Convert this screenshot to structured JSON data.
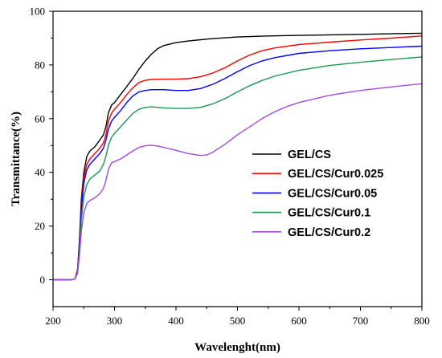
{
  "chart_data": {
    "type": "line",
    "title": "",
    "xlabel": "Wavelenght(nm)",
    "ylabel": "Transmittance(%)",
    "xlim": [
      200,
      800
    ],
    "ylim": [
      -10,
      100
    ],
    "xticks": [
      200,
      300,
      400,
      500,
      600,
      700,
      800
    ],
    "yticks": [
      0,
      20,
      40,
      60,
      80,
      100
    ],
    "grid": false,
    "legend": "center-right",
    "series": [
      {
        "name": "GEL/CS",
        "color": "#000000",
        "points": [
          [
            200,
            0
          ],
          [
            230,
            0
          ],
          [
            236,
            0.3
          ],
          [
            240,
            4
          ],
          [
            243,
            15
          ],
          [
            246,
            30
          ],
          [
            250,
            40
          ],
          [
            255,
            46
          ],
          [
            260,
            48
          ],
          [
            268,
            49.5
          ],
          [
            276,
            52
          ],
          [
            282,
            54
          ],
          [
            286,
            57
          ],
          [
            290,
            62
          ],
          [
            295,
            65
          ],
          [
            300,
            66
          ],
          [
            310,
            69
          ],
          [
            320,
            72
          ],
          [
            330,
            75
          ],
          [
            340,
            78.5
          ],
          [
            350,
            81.5
          ],
          [
            360,
            84
          ],
          [
            370,
            86
          ],
          [
            380,
            87.2
          ],
          [
            400,
            88.3
          ],
          [
            420,
            88.9
          ],
          [
            440,
            89.4
          ],
          [
            460,
            89.8
          ],
          [
            480,
            90.1
          ],
          [
            500,
            90.4
          ],
          [
            550,
            90.8
          ],
          [
            600,
            91
          ],
          [
            650,
            91.2
          ],
          [
            700,
            91.4
          ],
          [
            750,
            91.6
          ],
          [
            800,
            91.8
          ]
        ]
      },
      {
        "name": "GEL/CS/Cur0.025",
        "color": "#ff0000",
        "points": [
          [
            200,
            0
          ],
          [
            230,
            0
          ],
          [
            236,
            0.3
          ],
          [
            240,
            4
          ],
          [
            243,
            14
          ],
          [
            246,
            28
          ],
          [
            250,
            38
          ],
          [
            255,
            43
          ],
          [
            260,
            45
          ],
          [
            268,
            47
          ],
          [
            276,
            49
          ],
          [
            282,
            51
          ],
          [
            286,
            54
          ],
          [
            290,
            59
          ],
          [
            295,
            62
          ],
          [
            300,
            63.5
          ],
          [
            310,
            66
          ],
          [
            320,
            69
          ],
          [
            330,
            71.5
          ],
          [
            340,
            73.5
          ],
          [
            350,
            74.3
          ],
          [
            360,
            74.6
          ],
          [
            380,
            74.7
          ],
          [
            400,
            74.7
          ],
          [
            420,
            74.9
          ],
          [
            440,
            75.6
          ],
          [
            460,
            77
          ],
          [
            480,
            79
          ],
          [
            500,
            81.5
          ],
          [
            520,
            83.7
          ],
          [
            540,
            85.3
          ],
          [
            560,
            86.3
          ],
          [
            600,
            87.6
          ],
          [
            650,
            88.5
          ],
          [
            700,
            89.3
          ],
          [
            750,
            90
          ],
          [
            800,
            90.8
          ]
        ]
      },
      {
        "name": "GEL/CS/Cur0.05",
        "color": "#0000ff",
        "points": [
          [
            200,
            0
          ],
          [
            230,
            0
          ],
          [
            236,
            0.3
          ],
          [
            240,
            3.5
          ],
          [
            243,
            13
          ],
          [
            246,
            26
          ],
          [
            250,
            36
          ],
          [
            255,
            41
          ],
          [
            260,
            43
          ],
          [
            268,
            45
          ],
          [
            276,
            47
          ],
          [
            282,
            49
          ],
          [
            286,
            52
          ],
          [
            290,
            56
          ],
          [
            295,
            59
          ],
          [
            300,
            60.5
          ],
          [
            310,
            63
          ],
          [
            320,
            66
          ],
          [
            330,
            68.5
          ],
          [
            340,
            70
          ],
          [
            350,
            70.5
          ],
          [
            360,
            70.8
          ],
          [
            380,
            70.8
          ],
          [
            400,
            70.5
          ],
          [
            420,
            70.5
          ],
          [
            440,
            71.2
          ],
          [
            460,
            72.8
          ],
          [
            480,
            75
          ],
          [
            500,
            77.5
          ],
          [
            520,
            79.8
          ],
          [
            540,
            81.5
          ],
          [
            560,
            82.7
          ],
          [
            600,
            84.3
          ],
          [
            650,
            85.3
          ],
          [
            700,
            86
          ],
          [
            750,
            86.5
          ],
          [
            800,
            87
          ]
        ]
      },
      {
        "name": "GEL/CS/Cur0.1",
        "color": "#1a9850",
        "points": [
          [
            200,
            0
          ],
          [
            230,
            0
          ],
          [
            236,
            0.3
          ],
          [
            240,
            3
          ],
          [
            243,
            11
          ],
          [
            246,
            22
          ],
          [
            250,
            31
          ],
          [
            255,
            35.5
          ],
          [
            260,
            37.5
          ],
          [
            268,
            39
          ],
          [
            276,
            40.5
          ],
          [
            282,
            43
          ],
          [
            286,
            46
          ],
          [
            290,
            50
          ],
          [
            295,
            53
          ],
          [
            300,
            54.5
          ],
          [
            310,
            57
          ],
          [
            320,
            59.5
          ],
          [
            330,
            62
          ],
          [
            340,
            63.5
          ],
          [
            350,
            64.2
          ],
          [
            360,
            64.4
          ],
          [
            380,
            64
          ],
          [
            400,
            63.8
          ],
          [
            420,
            63.8
          ],
          [
            440,
            64.2
          ],
          [
            460,
            65.5
          ],
          [
            480,
            67.5
          ],
          [
            500,
            70
          ],
          [
            520,
            72.3
          ],
          [
            540,
            74.2
          ],
          [
            560,
            75.8
          ],
          [
            600,
            78
          ],
          [
            650,
            79.8
          ],
          [
            700,
            81
          ],
          [
            750,
            82
          ],
          [
            800,
            83
          ]
        ]
      },
      {
        "name": "GEL/CS/Cur0.2",
        "color": "#a24bdc",
        "points": [
          [
            200,
            0
          ],
          [
            230,
            0
          ],
          [
            236,
            0.3
          ],
          [
            240,
            2.5
          ],
          [
            243,
            9
          ],
          [
            246,
            18
          ],
          [
            250,
            25
          ],
          [
            255,
            28.5
          ],
          [
            260,
            29.5
          ],
          [
            268,
            30.5
          ],
          [
            276,
            32
          ],
          [
            282,
            34
          ],
          [
            286,
            37
          ],
          [
            290,
            41
          ],
          [
            295,
            43.5
          ],
          [
            300,
            44
          ],
          [
            310,
            45
          ],
          [
            320,
            46.5
          ],
          [
            330,
            48
          ],
          [
            340,
            49.3
          ],
          [
            350,
            49.9
          ],
          [
            360,
            50.1
          ],
          [
            370,
            49.8
          ],
          [
            380,
            49.3
          ],
          [
            400,
            48.2
          ],
          [
            420,
            47
          ],
          [
            440,
            46.3
          ],
          [
            450,
            46.5
          ],
          [
            460,
            47.5
          ],
          [
            480,
            50.5
          ],
          [
            500,
            54
          ],
          [
            520,
            57
          ],
          [
            540,
            60
          ],
          [
            560,
            62.5
          ],
          [
            580,
            64.5
          ],
          [
            600,
            66
          ],
          [
            650,
            68.7
          ],
          [
            700,
            70.5
          ],
          [
            750,
            71.8
          ],
          [
            800,
            73
          ]
        ]
      }
    ]
  }
}
